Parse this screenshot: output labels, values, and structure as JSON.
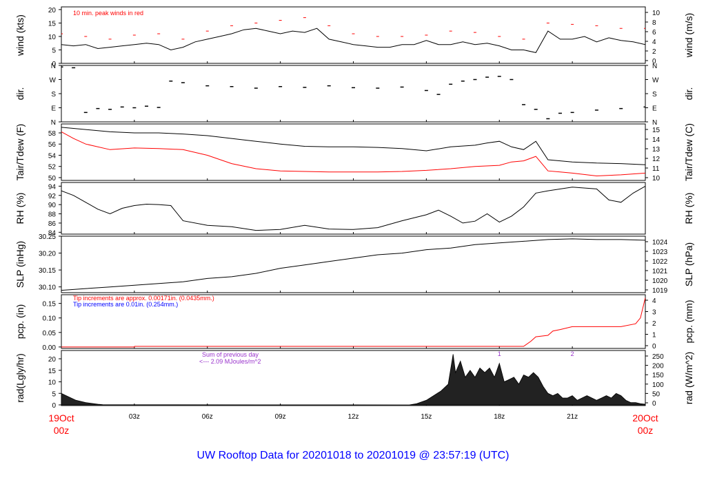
{
  "title": "UW Rooftop Data for 20201018  to  20201019 @ 23:57:19  (UTC)",
  "colors": {
    "black": "#000000",
    "red": "#ff0000",
    "blue": "#0000ff",
    "purple": "#9933cc",
    "title": "#0000ff"
  },
  "time_axis": {
    "hours": [
      0,
      3,
      6,
      9,
      12,
      15,
      18,
      21,
      24
    ],
    "labels": [
      "",
      "03z",
      "06z",
      "09z",
      "12z",
      "15z",
      "18z",
      "21z",
      ""
    ],
    "start_label": [
      "19Oct",
      "00z"
    ],
    "end_label": [
      "20Oct",
      "00z"
    ]
  },
  "chart_data": [
    {
      "type": "line",
      "name": "wind",
      "ylabel": "wind (kts)",
      "ylabel_right": "wind (m/s)",
      "yticks": [
        0,
        5,
        10,
        15,
        20
      ],
      "yticks_right": [
        0,
        2,
        4,
        6,
        8,
        10
      ],
      "ylim": [
        0,
        21
      ],
      "annotation": "10 min. peak winds in red",
      "series": [
        {
          "x": [
            0,
            0.5,
            1,
            1.5,
            2,
            2.5,
            3,
            3.5,
            4,
            4.5,
            5,
            5.5,
            6,
            6.5,
            7,
            7.5,
            8,
            8.5,
            9,
            9.5,
            10,
            10.5,
            11,
            11.5,
            12,
            12.5,
            13,
            13.5,
            14,
            14.5,
            15,
            15.5,
            16,
            16.5,
            17,
            17.5,
            18,
            18.5,
            19,
            19.5,
            20,
            20.5,
            21,
            21.5,
            22,
            22.5,
            23,
            23.5,
            24
          ],
          "y": [
            7,
            6.5,
            7,
            5.5,
            6,
            6.5,
            7,
            7.5,
            7,
            5,
            6,
            8,
            9,
            10,
            11,
            12.5,
            13,
            12,
            11,
            12,
            11.5,
            13,
            9,
            8,
            7,
            6.5,
            6,
            6,
            7,
            7,
            8.5,
            7,
            7,
            8,
            7,
            7.5,
            6.5,
            5,
            5,
            4,
            12,
            9,
            9,
            10,
            8,
            9.5,
            8.5,
            8,
            7
          ]
        },
        {
          "x": [
            0,
            1,
            2,
            3,
            4,
            5,
            6,
            7,
            8,
            9,
            10,
            11,
            12,
            13,
            14,
            15,
            16,
            17,
            18,
            19,
            20,
            21,
            22,
            23,
            24
          ],
          "y": [
            11,
            10,
            9,
            10.5,
            11,
            9,
            12,
            14,
            15,
            16,
            17,
            14,
            11,
            10,
            10,
            10.5,
            12,
            11.5,
            10,
            9,
            15,
            14.5,
            14,
            13,
            13
          ]
        }
      ]
    },
    {
      "type": "scatter",
      "name": "dir",
      "ylabel": "dir.",
      "ylabel_right": "dir.",
      "yticks": [
        "N",
        "E",
        "S",
        "W",
        "N"
      ],
      "ylim": [
        0,
        360
      ],
      "series": [
        {
          "x": [
            0,
            0.5,
            1,
            1.5,
            2,
            2.5,
            3,
            3.5,
            4,
            4.5,
            5,
            6,
            7,
            8,
            9,
            10,
            11,
            12,
            13,
            14,
            15,
            15.5,
            16,
            16.5,
            17,
            17.5,
            18,
            18.5,
            19,
            19.5,
            20,
            20.5,
            21,
            22,
            23,
            24
          ],
          "y": [
            350,
            345,
            60,
            85,
            80,
            95,
            90,
            100,
            92,
            260,
            250,
            230,
            225,
            215,
            225,
            220,
            230,
            218,
            215,
            222,
            200,
            175,
            240,
            260,
            270,
            285,
            290,
            270,
            110,
            80,
            20,
            55,
            60,
            75,
            85,
            95
          ]
        }
      ]
    },
    {
      "type": "line",
      "name": "temp",
      "ylabel": "Tair/Tdew (F)",
      "ylabel_right": "Tair/Tdew (C)",
      "yticks": [
        50,
        52,
        54,
        56,
        58
      ],
      "yticks_right": [
        10,
        11,
        12,
        13,
        14,
        15
      ],
      "ylim": [
        49.5,
        59.6
      ],
      "series": [
        {
          "x": [
            0,
            1,
            2,
            3,
            4,
            5,
            6,
            7,
            8,
            9,
            10,
            11,
            12,
            13,
            14,
            15,
            16,
            17,
            17.5,
            18,
            18.5,
            19,
            19.5,
            20,
            20.5,
            21,
            22,
            23,
            24
          ],
          "y": [
            59,
            58.6,
            58.2,
            58,
            58,
            57.8,
            57.5,
            57,
            56.5,
            56,
            55.6,
            55.5,
            55.5,
            55.4,
            55.2,
            54.8,
            55.5,
            55.8,
            56.2,
            56.5,
            55.5,
            55,
            56.5,
            53.2,
            53,
            52.8,
            52.6,
            52.5,
            52.3
          ]
        },
        {
          "x": [
            0,
            0.5,
            1,
            2,
            3,
            4,
            5,
            6,
            7,
            8,
            9,
            10,
            11,
            12,
            13,
            14,
            15,
            16,
            17,
            18,
            18.5,
            19,
            19.5,
            20,
            20.5,
            21,
            22,
            23,
            24
          ],
          "y": [
            58.2,
            57,
            56,
            55,
            55.3,
            55.2,
            55,
            54,
            52.5,
            51.6,
            51.2,
            51.1,
            51,
            51,
            51,
            51.1,
            51.3,
            51.6,
            52,
            52.2,
            52.8,
            53,
            53.8,
            51.2,
            51,
            50.8,
            50.3,
            50.5,
            50.8
          ]
        }
      ]
    },
    {
      "type": "line",
      "name": "rh",
      "ylabel": "RH (%)",
      "ylabel_right": "RH (%)",
      "yticks": [
        84,
        86,
        88,
        90,
        92,
        94
      ],
      "ylim": [
        83.6,
        94.8
      ],
      "series": [
        {
          "x": [
            0,
            0.5,
            1,
            1.5,
            2,
            2.5,
            3,
            3.5,
            4,
            4.5,
            5,
            6,
            7,
            8,
            9,
            10,
            11,
            12,
            13,
            14,
            15,
            15.5,
            16,
            16.5,
            17,
            17.5,
            18,
            18.5,
            19,
            19.5,
            20,
            21,
            22,
            22.5,
            23,
            23.5,
            24
          ],
          "y": [
            93,
            92,
            90.5,
            89,
            88,
            89.2,
            89.8,
            90.1,
            90,
            89.8,
            86.5,
            85.5,
            85.2,
            84.4,
            84.6,
            85.5,
            84.7,
            84.6,
            85,
            86.5,
            87.8,
            88.8,
            87.5,
            86,
            86.4,
            88,
            86.2,
            87.5,
            89.5,
            92.5,
            93,
            93.8,
            93.4,
            91,
            90.5,
            92.5,
            94
          ]
        }
      ]
    },
    {
      "type": "line",
      "name": "slp",
      "ylabel": "SLP (inHg)",
      "ylabel_right": "SLP (hPa)",
      "yticks": [
        "30.10",
        "30.15",
        "30.20",
        "30.25"
      ],
      "yticks_right": [
        1019,
        1020,
        1021,
        1022,
        1023,
        1024
      ],
      "ylim": [
        30.083,
        30.25
      ],
      "series": [
        {
          "x": [
            0,
            1,
            2,
            3,
            4,
            5,
            6,
            7,
            8,
            9,
            10,
            11,
            12,
            13,
            14,
            15,
            16,
            17,
            18,
            19,
            20,
            21,
            22,
            23,
            24
          ],
          "y": [
            30.09,
            30.095,
            30.1,
            30.105,
            30.11,
            30.115,
            30.125,
            30.13,
            30.14,
            30.155,
            30.165,
            30.175,
            30.185,
            30.195,
            30.2,
            30.21,
            30.215,
            30.225,
            30.23,
            30.235,
            30.24,
            30.242,
            30.24,
            30.24,
            30.238
          ]
        }
      ]
    },
    {
      "type": "line",
      "name": "pcp",
      "ylabel": "pcp. (in)",
      "ylabel_right": "pcp. (mm)",
      "yticks": [
        "0.00",
        "0.05",
        "0.10",
        "0.15"
      ],
      "yticks_right": [
        0,
        1,
        2,
        3,
        4
      ],
      "ylim": [
        -0.005,
        0.18
      ],
      "annotations": [
        "Tip increments are approx. 0.00171in. (0.0435mm.)",
        "Tip increments are 0.01in. (0.254mm.)"
      ],
      "series": [
        {
          "x": [
            0,
            3,
            3.01,
            19,
            19.3,
            19.5,
            20,
            20.2,
            20.5,
            21,
            22,
            23,
            23.6,
            23.8,
            24
          ],
          "y": [
            0,
            0,
            0.002,
            0.002,
            0.02,
            0.035,
            0.04,
            0.055,
            0.06,
            0.07,
            0.07,
            0.07,
            0.08,
            0.1,
            0.17
          ]
        }
      ]
    },
    {
      "type": "area",
      "name": "rad",
      "ylabel": "rad(Lgly/hr)",
      "ylabel_right": "rad (W/m^2)",
      "yticks": [
        0,
        5,
        10,
        15,
        20
      ],
      "yticks_right": [
        0,
        50,
        100,
        150,
        200,
        250
      ],
      "ylim": [
        -0.3,
        23.6
      ],
      "annotations": [
        "Sum of previous day",
        "<--- 2.09 MJoules/m^2"
      ],
      "markers": [
        {
          "x": 18,
          "label": "1"
        },
        {
          "x": 21,
          "label": "2"
        }
      ],
      "series": [
        {
          "x": [
            0,
            0.3,
            0.6,
            1,
            1.5,
            1.7,
            14.3,
            14.6,
            15,
            15.3,
            15.6,
            15.9,
            16.1,
            16.2,
            16.4,
            16.6,
            16.8,
            17,
            17.2,
            17.4,
            17.6,
            17.8,
            18,
            18.2,
            18.4,
            18.6,
            18.8,
            19,
            19.2,
            19.4,
            19.6,
            19.8,
            20,
            20.2,
            20.4,
            20.6,
            20.8,
            21,
            21.2,
            21.4,
            21.6,
            21.8,
            22,
            22.2,
            22.4,
            22.6,
            22.8,
            23,
            23.2,
            23.4,
            23.6,
            23.8,
            24
          ],
          "y": [
            5,
            3.5,
            2,
            1,
            0.3,
            0.1,
            0,
            0.5,
            2,
            4,
            6,
            9,
            22,
            14,
            19,
            12,
            15,
            12,
            16,
            14,
            16,
            12,
            18,
            10,
            11,
            12,
            9,
            13,
            12,
            14,
            12,
            8,
            5,
            4,
            5,
            3,
            3,
            4,
            2,
            3,
            4,
            3,
            2,
            3,
            4,
            3,
            5,
            4,
            2,
            1,
            1,
            0.5,
            0.3
          ]
        }
      ]
    }
  ]
}
